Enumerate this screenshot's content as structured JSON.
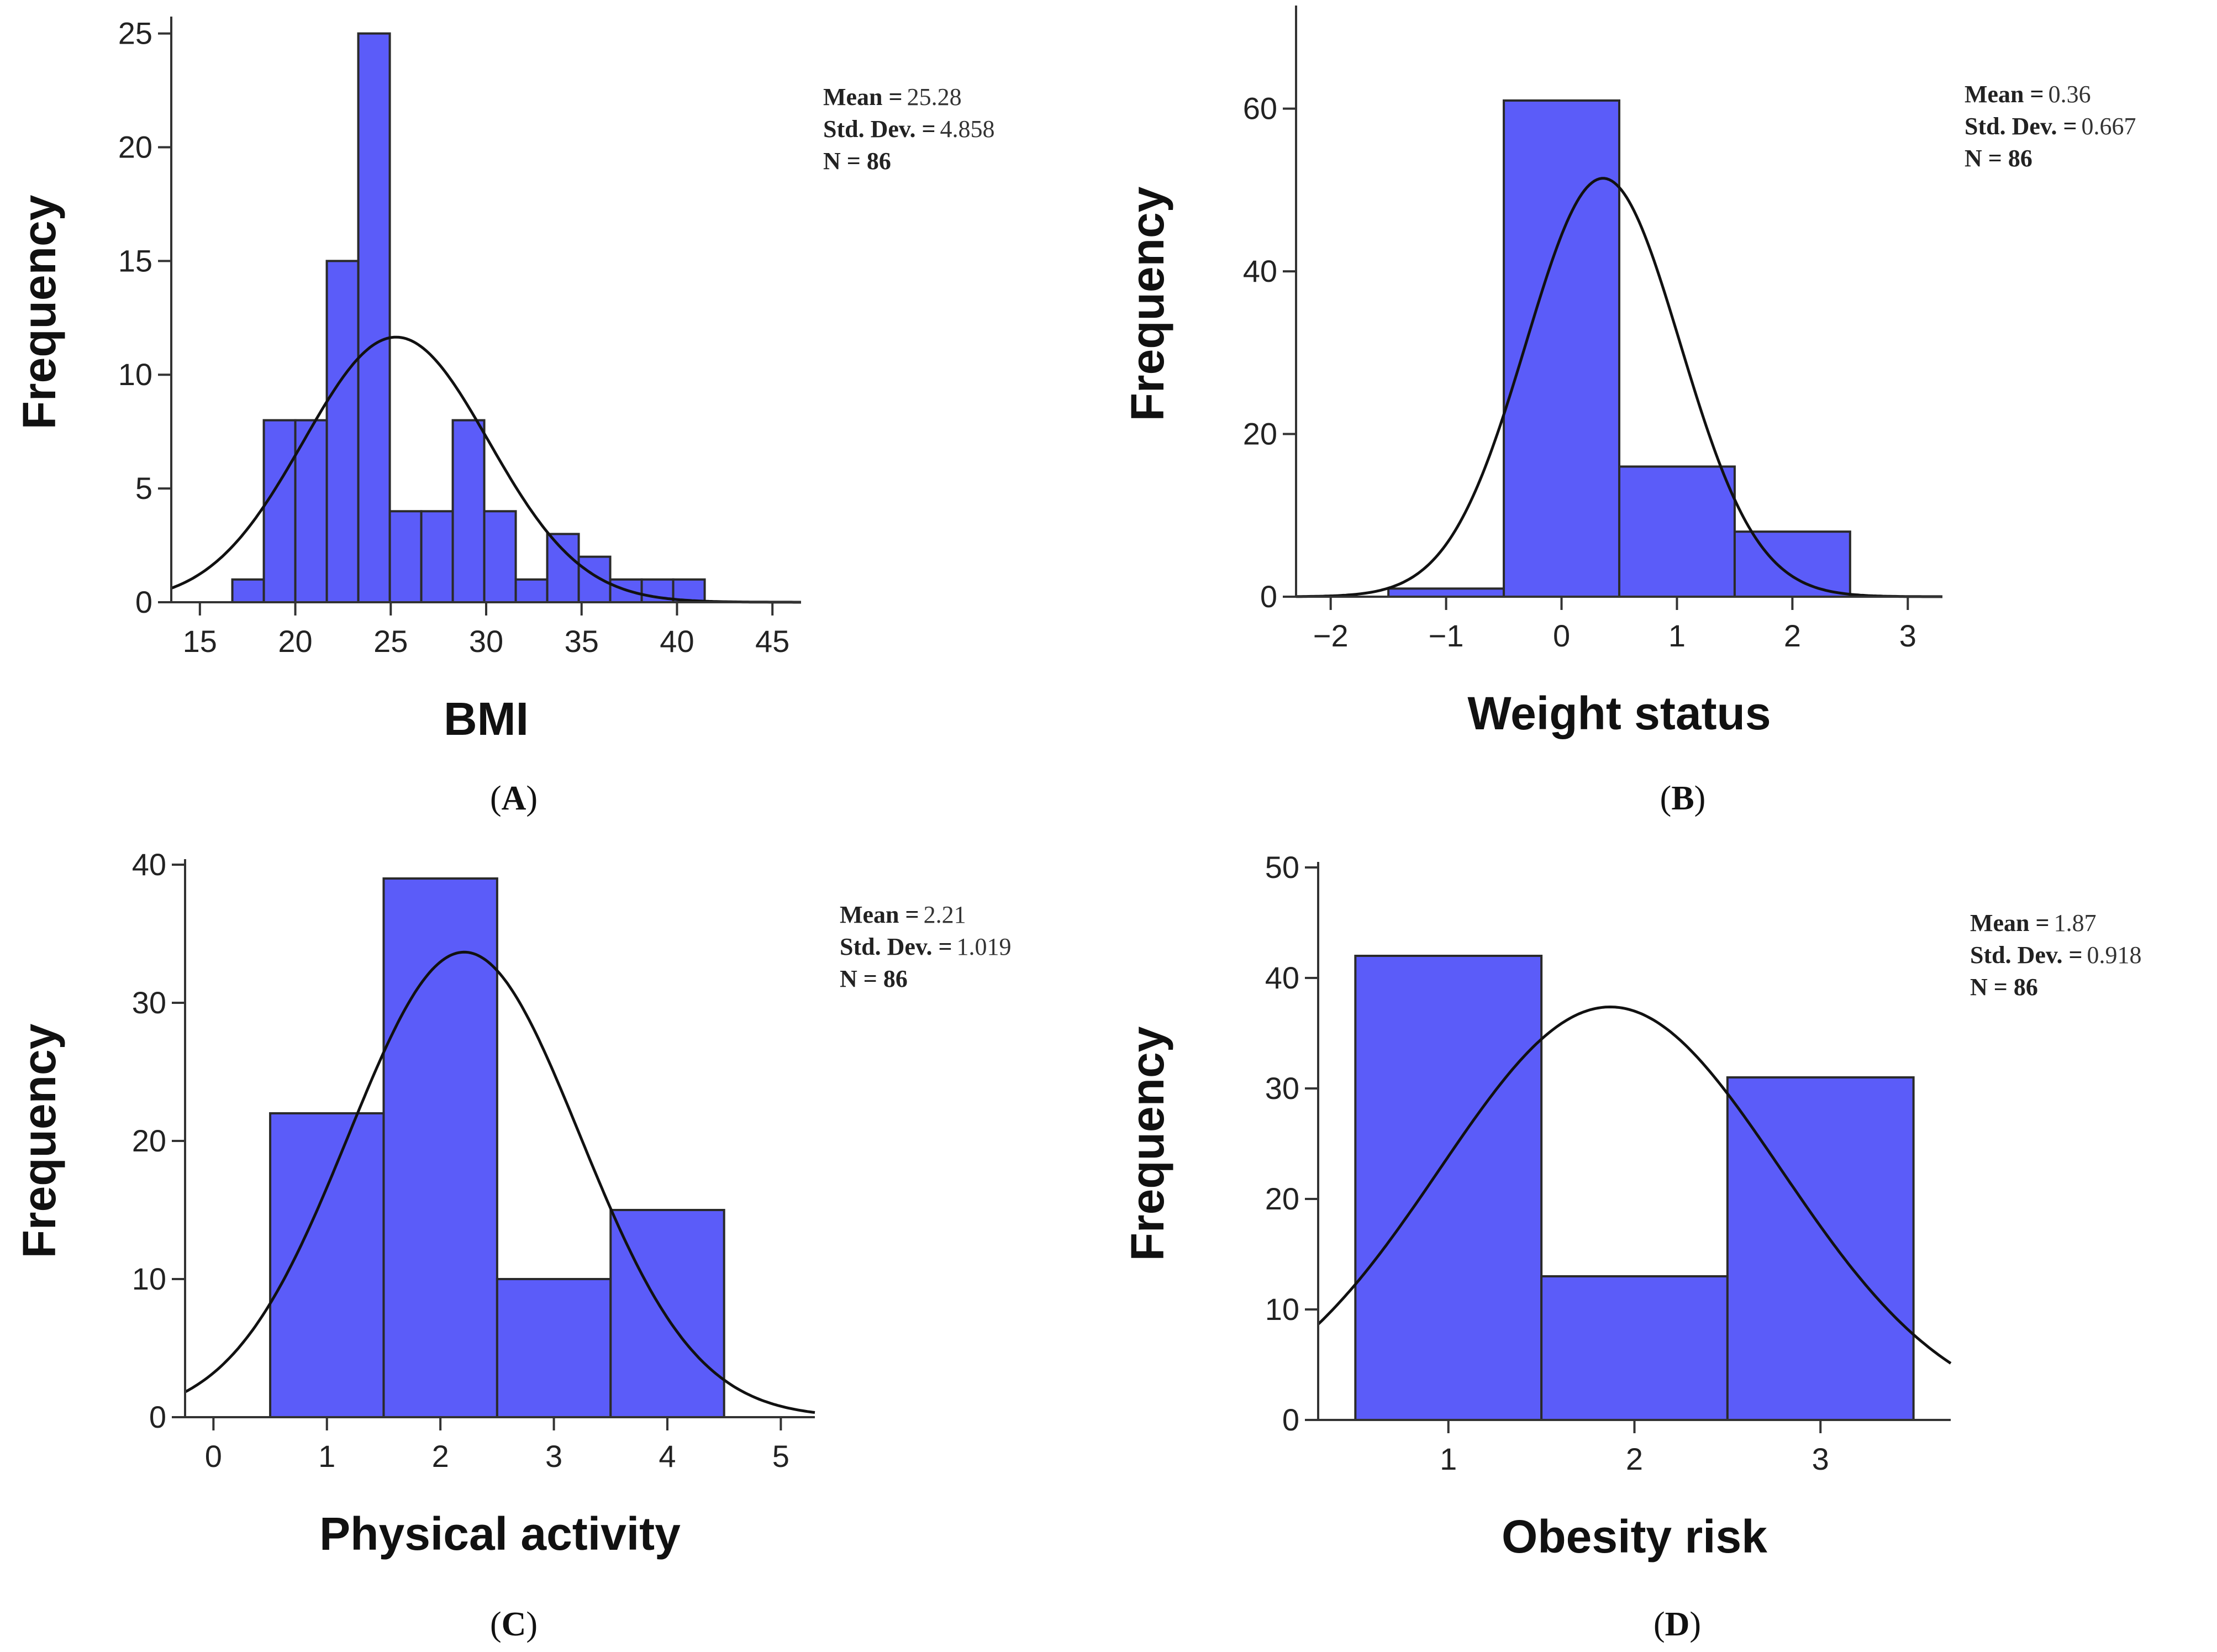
{
  "colors": {
    "bar_fill": "#5b5cf9",
    "bar_stroke": "#2a2a2a",
    "curve": "#111111",
    "axis": "#333333"
  },
  "chart_data": [
    {
      "id": "A",
      "type": "bar",
      "caption": "A",
      "xlabel": "BMI",
      "ylabel": "Frequency",
      "xlim": [
        13.5,
        46.5
      ],
      "ylim": [
        0,
        25.5
      ],
      "xticks": [
        15,
        20,
        25,
        30,
        35,
        40,
        45
      ],
      "yticks": [
        0,
        5,
        10,
        15,
        20,
        25
      ],
      "bin_edges": [
        16.7,
        18.35,
        20,
        21.65,
        23.3,
        24.95,
        26.6,
        28.25,
        29.9,
        31.55,
        33.2,
        34.85,
        36.5,
        38.15,
        39.8,
        41.45
      ],
      "counts": [
        1,
        8,
        8,
        15,
        25,
        4,
        4,
        8,
        4,
        1,
        3,
        2,
        1,
        1,
        1
      ],
      "curve": {
        "mean": 25.28,
        "sd": 4.858,
        "n": 86,
        "bin_width": 1.65
      },
      "stats": {
        "mean_label": "Mean =",
        "mean_value": "25.28",
        "sd_label": "Std. Dev. =",
        "sd_value": "4.858",
        "n_label": "N = 86"
      }
    },
    {
      "id": "B",
      "type": "bar",
      "caption": "B",
      "xlabel": "Weight status",
      "ylabel": "Frequency",
      "xlim": [
        -2.3,
        3.3
      ],
      "ylim": [
        0,
        72
      ],
      "xticks": [
        -2,
        -1,
        0,
        1,
        2,
        3
      ],
      "xtick_labels": [
        "−2",
        "−1",
        "0",
        "1",
        "2",
        "3"
      ],
      "yticks": [
        0,
        20,
        40,
        60
      ],
      "bin_edges": [
        -1.5,
        -0.5,
        0.5,
        1.5,
        2.5
      ],
      "counts": [
        1,
        61,
        16,
        8
      ],
      "curve": {
        "mean": 0.36,
        "sd": 0.667,
        "n": 86,
        "bin_width": 1
      },
      "stats": {
        "mean_label": "Mean =",
        "mean_value": "0.36",
        "sd_label": "Std. Dev. =",
        "sd_value": "0.667",
        "n_label": "N = 86"
      }
    },
    {
      "id": "C",
      "type": "bar",
      "caption": "C",
      "xlabel": "Physical activity",
      "ylabel": "Frequency",
      "xlim": [
        -0.25,
        5.3
      ],
      "ylim": [
        0,
        40
      ],
      "xticks": [
        0,
        1,
        2,
        3,
        4,
        5
      ],
      "yticks": [
        0,
        10,
        20,
        30,
        40
      ],
      "bin_edges": [
        0.5,
        1.5,
        2.5,
        3.5,
        4.5
      ],
      "counts": [
        22,
        39,
        10,
        15
      ],
      "curve": {
        "mean": 2.21,
        "sd": 1.019,
        "n": 86,
        "bin_width": 1
      },
      "stats": {
        "mean_label": "Mean =",
        "mean_value": "2.21",
        "sd_label": "Std. Dev. =",
        "sd_value": "1.019",
        "n_label": "N = 86"
      }
    },
    {
      "id": "D",
      "type": "bar",
      "caption": "D",
      "xlabel": "Obesity risk",
      "ylabel": "Frequency",
      "xlim": [
        0.3,
        3.7
      ],
      "ylim": [
        0,
        50
      ],
      "xticks": [
        1,
        2,
        3
      ],
      "yticks": [
        0,
        10,
        20,
        30,
        40,
        50
      ],
      "bin_edges": [
        0.5,
        1.5,
        2.5,
        3.5
      ],
      "counts": [
        42,
        13,
        31
      ],
      "curve": {
        "mean": 1.87,
        "sd": 0.918,
        "n": 86,
        "bin_width": 1
      },
      "stats": {
        "mean_label": "Mean =",
        "mean_value": "1.87",
        "sd_label": "Std. Dev. =",
        "sd_value": "0.918",
        "n_label": "N = 86"
      }
    }
  ]
}
